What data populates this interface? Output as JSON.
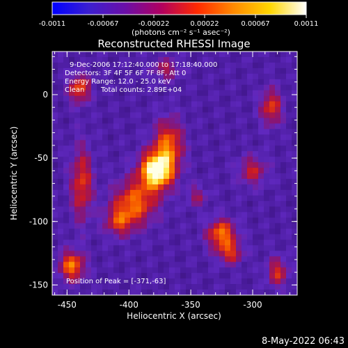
{
  "colorbar": {
    "ticks": [
      "-0.0011",
      "-0.00067",
      "-0.00022",
      "0.00022",
      "0.00067",
      "0.0011"
    ],
    "units": "(photons cm⁻² s⁻¹ asec⁻²)",
    "colors": [
      "#0000ff",
      "#3b1fd0",
      "#6a0fa8",
      "#b00060",
      "#ff2a00",
      "#ff8a00",
      "#ffd600",
      "#ffffff"
    ]
  },
  "chart_data": {
    "type": "heatmap",
    "title": "Reconstructed RHESSI Image",
    "xlabel": "Heliocentric X (arcsec)",
    "ylabel": "Heliocentric Y (arcsec)",
    "xlim": [
      -462,
      -264
    ],
    "ylim": [
      -158,
      34
    ],
    "xticks": [
      -450,
      -400,
      -350,
      -300
    ],
    "yticks": [
      0,
      -50,
      -100,
      -150
    ],
    "annotations": [
      "9-Dec-2006 17:12:40.000 to 17:18:40.000",
      "Detectors: 3F 4F 5F 6F 7F 8F, Att 0",
      "Energy Range: 12.0 - 25.0 keV",
      "Clean",
      "Total counts: 2.89E+04"
    ],
    "peak_label": "Position of Peak = [-371,-63]",
    "peak": [
      -371,
      -63
    ],
    "sources": [
      {
        "x": -378,
        "y": -60,
        "amp": 1.0,
        "sx": 9,
        "sy": 10
      },
      {
        "x": -368,
        "y": -40,
        "amp": 0.55,
        "sx": 8,
        "sy": 14
      },
      {
        "x": -395,
        "y": -85,
        "amp": 0.55,
        "sx": 12,
        "sy": 12
      },
      {
        "x": -408,
        "y": -100,
        "amp": 0.4,
        "sx": 8,
        "sy": 8
      },
      {
        "x": -438,
        "y": -70,
        "amp": 0.45,
        "sx": 6,
        "sy": 20
      },
      {
        "x": -446,
        "y": -135,
        "amp": 0.6,
        "sx": 7,
        "sy": 8
      },
      {
        "x": -440,
        "y": 5,
        "amp": 0.5,
        "sx": 6,
        "sy": 8
      },
      {
        "x": -325,
        "y": -110,
        "amp": 0.6,
        "sx": 8,
        "sy": 8
      },
      {
        "x": -318,
        "y": -125,
        "amp": 0.4,
        "sx": 7,
        "sy": 6
      },
      {
        "x": -285,
        "y": -10,
        "amp": 0.45,
        "sx": 6,
        "sy": 10
      },
      {
        "x": -300,
        "y": -60,
        "amp": 0.35,
        "sx": 8,
        "sy": 8
      },
      {
        "x": -280,
        "y": -140,
        "amp": 0.4,
        "sx": 6,
        "sy": 8
      },
      {
        "x": -370,
        "y": 20,
        "amp": 0.3,
        "sx": 8,
        "sy": 6
      },
      {
        "x": -345,
        "y": -80,
        "amp": 0.25,
        "sx": 6,
        "sy": 6
      }
    ]
  },
  "timestamp": "8-May-2022 06:43"
}
